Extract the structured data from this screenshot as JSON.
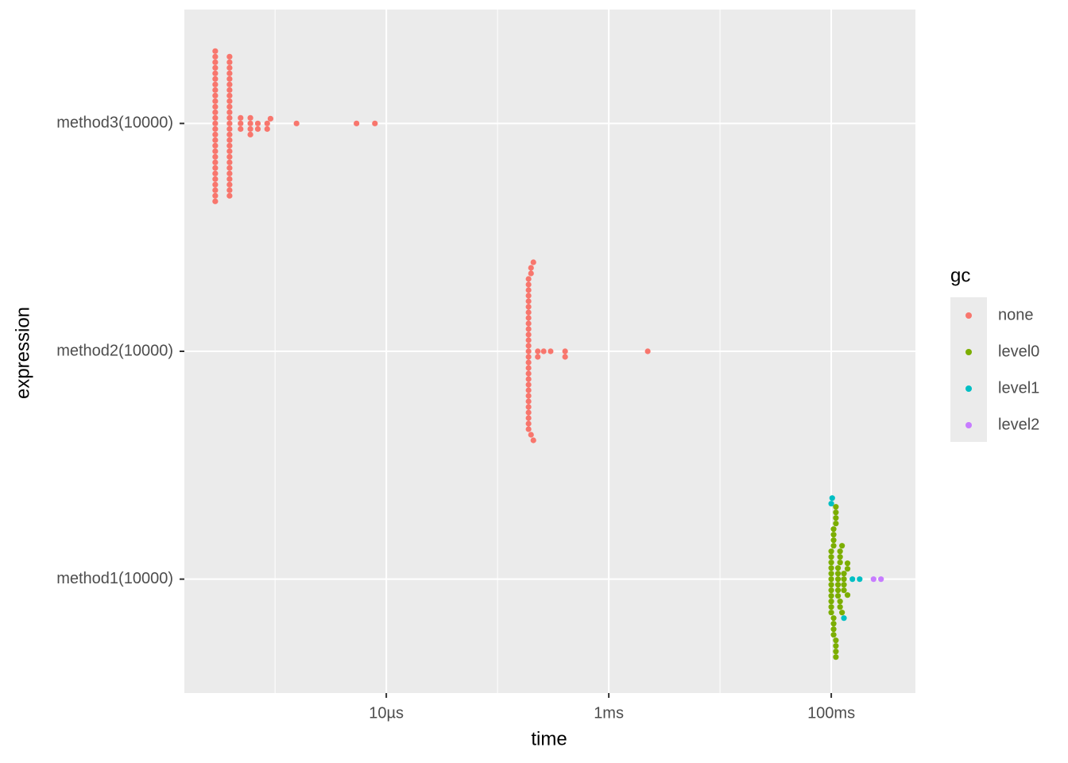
{
  "chart_data": {
    "type": "beeswarm",
    "x_label": "time",
    "y_label": "expression",
    "legend_title": "gc",
    "log_x": true,
    "grid": true,
    "xlim": [
      1.53e-07,
      0.571
    ],
    "xticks": [
      {
        "value": 1e-05,
        "label": "10µs"
      },
      {
        "value": 0.001,
        "label": "1ms"
      },
      {
        "value": 0.1,
        "label": "100ms"
      }
    ],
    "xminor": [
      1e-06,
      0.0001,
      0.01
    ],
    "categories": [
      "method1(10000)",
      "method2(10000)",
      "method3(10000)"
    ],
    "series": [
      {
        "name": "none",
        "color": "#F8766D",
        "values": [
          [],
          [
            0.00019,
            0.00019,
            0.00019,
            0.00019,
            0.00019,
            0.00019,
            0.00019,
            0.00019,
            0.00019,
            0.00019,
            0.00019,
            0.00019,
            0.00019,
            0.00019,
            0.00019,
            0.00019,
            0.00019,
            0.00019,
            0.00019,
            0.00019,
            0.00019,
            0.00019,
            0.00019,
            0.00019,
            0.00019,
            0.00019,
            0.00019,
            0.00019,
            0.0002,
            0.0002,
            0.0002,
            0.00021,
            0.00021,
            0.00023,
            0.00023,
            0.00026,
            0.0003,
            0.000405,
            0.000405,
            0.00224
          ],
          [
            2.9e-07,
            2.9e-07,
            2.9e-07,
            2.9e-07,
            2.9e-07,
            2.9e-07,
            2.9e-07,
            2.9e-07,
            2.9e-07,
            2.9e-07,
            2.9e-07,
            2.9e-07,
            2.9e-07,
            2.9e-07,
            2.9e-07,
            2.9e-07,
            2.9e-07,
            2.9e-07,
            2.9e-07,
            2.9e-07,
            2.9e-07,
            2.9e-07,
            2.9e-07,
            2.9e-07,
            2.9e-07,
            2.9e-07,
            2.9e-07,
            2.9e-07,
            3.9e-07,
            3.9e-07,
            3.9e-07,
            3.9e-07,
            3.9e-07,
            3.9e-07,
            3.9e-07,
            3.9e-07,
            3.9e-07,
            3.9e-07,
            3.9e-07,
            3.9e-07,
            3.9e-07,
            3.9e-07,
            3.9e-07,
            3.9e-07,
            3.9e-07,
            3.9e-07,
            3.9e-07,
            3.9e-07,
            3.9e-07,
            3.9e-07,
            3.9e-07,
            3.9e-07,
            3.9e-07,
            3.9e-07,
            4.9e-07,
            4.9e-07,
            4.9e-07,
            6e-07,
            6e-07,
            6e-07,
            6e-07,
            7e-07,
            7e-07,
            8.5e-07,
            8.5e-07,
            9.1e-07,
            1.56e-06,
            5.4e-06,
            7.9e-06
          ]
        ]
      },
      {
        "name": "level0",
        "color": "#7CAE00",
        "values": [
          [
            0.1,
            0.1,
            0.1,
            0.1,
            0.1,
            0.1,
            0.1,
            0.1,
            0.1,
            0.1,
            0.1,
            0.1,
            0.105,
            0.105,
            0.105,
            0.105,
            0.105,
            0.105,
            0.105,
            0.105,
            0.11,
            0.11,
            0.11,
            0.11,
            0.11,
            0.11,
            0.11,
            0.11,
            0.115,
            0.115,
            0.115,
            0.115,
            0.115,
            0.115,
            0.12,
            0.12,
            0.12,
            0.12,
            0.12,
            0.125,
            0.125,
            0.13,
            0.13,
            0.13,
            0.13,
            0.14,
            0.14,
            0.14
          ],
          [],
          []
        ]
      },
      {
        "name": "level1",
        "color": "#00BFC4",
        "values": [
          [
            0.1,
            0.102,
            0.13,
            0.155,
            0.18
          ],
          [],
          []
        ]
      },
      {
        "name": "level2",
        "color": "#C77CFF",
        "values": [
          [
            0.24,
            0.28
          ],
          [],
          []
        ]
      }
    ]
  }
}
